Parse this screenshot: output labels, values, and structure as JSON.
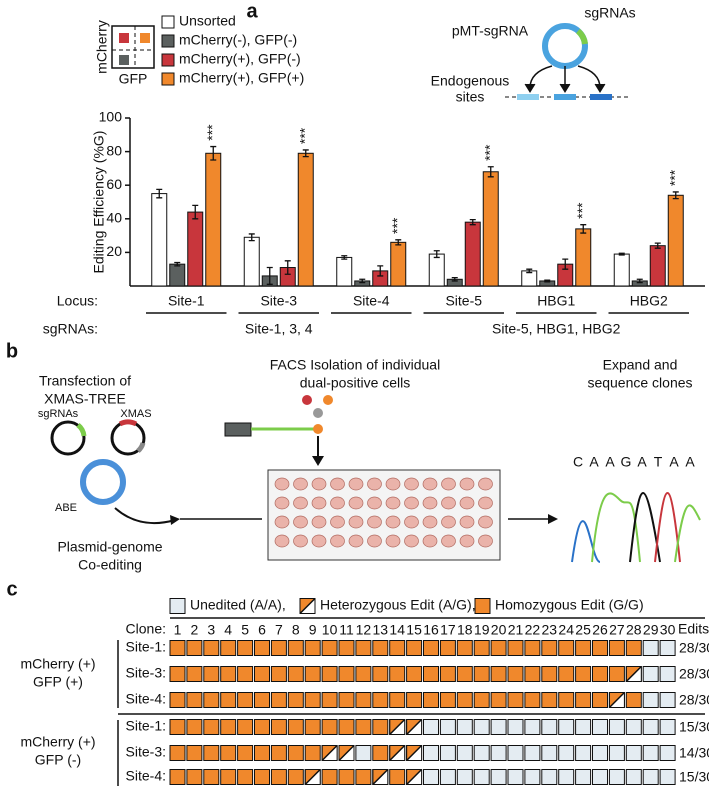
{
  "panels": [
    "a",
    "b",
    "c"
  ],
  "chart_data": {
    "type": "bar",
    "ylabel": "Editing Efficiency (%G)",
    "category_axis_label": "Locus:",
    "group_axis_label": "sgRNAs:",
    "categories": [
      "Site-1",
      "Site-3",
      "Site-4",
      "Site-5",
      "HBG1",
      "HBG2"
    ],
    "groups": [
      "Site-1, 3, 4",
      "Site-5, HBG1, HBG2"
    ],
    "series": [
      {
        "name": "Unsorted",
        "color": "#ffffff",
        "values": [
          55,
          29,
          17,
          19,
          9,
          19
        ],
        "errors": [
          2.5,
          2,
          1,
          2,
          1,
          0.5
        ]
      },
      {
        "name": "mCherry(-), GFP(-)",
        "color": "#5b605f",
        "values": [
          13,
          6,
          3,
          4,
          3,
          3
        ],
        "errors": [
          1,
          5,
          1,
          1,
          0.5,
          1
        ]
      },
      {
        "name": "mCherry(+), GFP(-)",
        "color": "#c8363c",
        "values": [
          44,
          11,
          9,
          38,
          13,
          24
        ],
        "errors": [
          4,
          4,
          3,
          1.5,
          3,
          1.5
        ]
      },
      {
        "name": "mCherry(+), GFP(+)",
        "color": "#f0882c",
        "values": [
          79,
          79,
          26,
          68,
          34,
          54
        ],
        "errors": [
          4,
          2,
          1.5,
          3,
          2.5,
          2
        ],
        "annotations": [
          "***",
          "***",
          "***",
          "***",
          "***",
          "***"
        ]
      }
    ],
    "ylim": [
      0,
      100
    ],
    "yticks": [
      20,
      40,
      60,
      80,
      100
    ],
    "inset_axes": {
      "x": "GFP",
      "y": "mCherry"
    },
    "diagram": {
      "plasmid": "pMT-sgRNA",
      "guides": "sgRNAs",
      "sites": [
        "Endogenous",
        "sites"
      ]
    }
  },
  "panel_b": {
    "steps": [
      [
        "Transfection of",
        "XMAS-TREE"
      ],
      [
        "FACS Isolation of individual",
        "dual-positive cells"
      ],
      [
        "Expand and",
        "sequence clones"
      ]
    ],
    "plasmids": [
      "sgRNAs",
      "XMAS",
      "ABE"
    ],
    "coediting": [
      "Plasmid-genome",
      "Co-editing"
    ],
    "sequence": [
      "C",
      "A",
      "A",
      "G",
      "A",
      "T",
      "A",
      "A"
    ]
  },
  "panel_c": {
    "legend": [
      "Unedited (A/A),",
      "Heterozygous Edit (A/G),",
      "Homozygous Edit (G/G)"
    ],
    "clone_label": "Clone:",
    "edits_label": "Edits",
    "clones": [
      1,
      2,
      3,
      4,
      5,
      6,
      7,
      8,
      9,
      10,
      11,
      12,
      13,
      14,
      15,
      16,
      17,
      18,
      19,
      20,
      21,
      22,
      23,
      24,
      25,
      26,
      27,
      28,
      29,
      30
    ],
    "groups": [
      {
        "label": [
          "mCherry (+)",
          "GFP (+)"
        ],
        "rows": [
          {
            "name": "Site-1:",
            "edits": "28/30",
            "cells": [
              2,
              2,
              2,
              2,
              2,
              2,
              2,
              2,
              2,
              2,
              2,
              2,
              2,
              2,
              2,
              2,
              2,
              2,
              2,
              2,
              2,
              2,
              2,
              2,
              2,
              2,
              2,
              2,
              0,
              0
            ]
          },
          {
            "name": "Site-3:",
            "edits": "28/30",
            "cells": [
              2,
              2,
              2,
              2,
              2,
              2,
              2,
              2,
              2,
              2,
              2,
              2,
              2,
              2,
              2,
              2,
              2,
              2,
              2,
              2,
              2,
              2,
              2,
              2,
              2,
              2,
              2,
              1,
              0,
              0
            ]
          },
          {
            "name": "Site-4:",
            "edits": "28/30",
            "cells": [
              2,
              2,
              2,
              2,
              2,
              2,
              2,
              2,
              2,
              2,
              2,
              2,
              2,
              2,
              2,
              2,
              2,
              2,
              2,
              2,
              2,
              2,
              2,
              2,
              2,
              2,
              1,
              2,
              0,
              0
            ]
          }
        ]
      },
      {
        "label": [
          "mCherry (+)",
          "GFP (-)"
        ],
        "rows": [
          {
            "name": "Site-1:",
            "edits": "15/30",
            "cells": [
              2,
              2,
              2,
              2,
              2,
              2,
              2,
              2,
              2,
              2,
              2,
              2,
              2,
              1,
              1,
              0,
              0,
              0,
              0,
              0,
              0,
              0,
              0,
              0,
              0,
              0,
              0,
              0,
              0,
              0
            ]
          },
          {
            "name": "Site-3:",
            "edits": "14/30",
            "cells": [
              2,
              2,
              2,
              2,
              2,
              2,
              2,
              2,
              2,
              1,
              1,
              0,
              2,
              1,
              1,
              0,
              0,
              0,
              0,
              0,
              0,
              0,
              0,
              0,
              0,
              0,
              0,
              0,
              0,
              0
            ]
          },
          {
            "name": "Site-4:",
            "edits": "15/30",
            "cells": [
              2,
              2,
              2,
              2,
              2,
              2,
              2,
              2,
              1,
              2,
              2,
              2,
              1,
              2,
              1,
              0,
              0,
              0,
              0,
              0,
              0,
              0,
              0,
              0,
              0,
              0,
              0,
              0,
              0,
              0
            ]
          }
        ]
      }
    ]
  }
}
